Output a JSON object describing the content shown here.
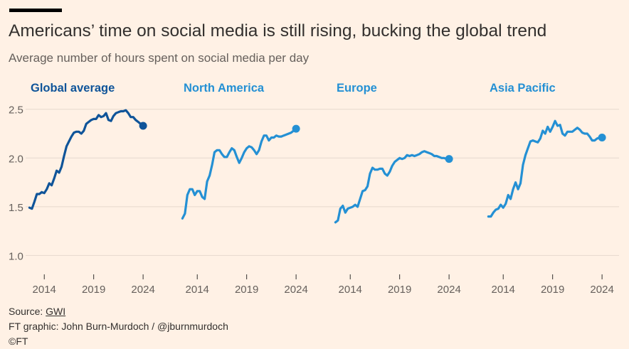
{
  "header": {
    "title": "Americans’ time on social media is still rising, bucking the global trend",
    "subtitle": "Average number of hours spent on social media per day"
  },
  "footer": {
    "source_label": "Source: ",
    "source_link": "GWI",
    "credit": "FT graphic: John Burn-Murdoch / @jburnmurdoch",
    "copyright": "©FT"
  },
  "colors": {
    "background": "#fff1e5",
    "global": "#0f5499",
    "region": "#2490d4",
    "grid": "#e6d9ce",
    "tick_text": "#66605c"
  },
  "chart_data": [
    {
      "type": "line",
      "title": "Global average",
      "color": "#0f5499",
      "ylim": [
        0.85,
        2.6
      ],
      "yticks": [
        1.0,
        1.5,
        2.0,
        2.5
      ],
      "yticklabels": [
        "1.0",
        "1.5",
        "2.0",
        "2.5"
      ],
      "xlim": [
        2012.4,
        2025.0
      ],
      "xticks": [
        2014,
        2019,
        2024
      ],
      "grid": true,
      "series": [
        {
          "x": [
            2012.5,
            2012.75,
            2013.0,
            2013.25,
            2013.5,
            2013.75,
            2014.0,
            2014.25,
            2014.5,
            2014.75,
            2015.0,
            2015.25,
            2015.5,
            2015.75,
            2016.0,
            2016.25,
            2016.5,
            2016.75,
            2017.0,
            2017.25,
            2017.5,
            2017.75,
            2018.0,
            2018.25,
            2018.5,
            2018.75,
            2019.0,
            2019.25,
            2019.5,
            2019.75,
            2020.0,
            2020.25,
            2020.5,
            2020.75,
            2021.0,
            2021.25,
            2021.5,
            2021.75,
            2022.0,
            2022.25,
            2022.5,
            2022.75,
            2023.0,
            2023.25,
            2023.5,
            2023.75,
            2024.0
          ],
          "y": [
            1.49,
            1.48,
            1.55,
            1.63,
            1.63,
            1.65,
            1.64,
            1.68,
            1.74,
            1.72,
            1.79,
            1.87,
            1.85,
            1.91,
            2.02,
            2.12,
            2.17,
            2.22,
            2.26,
            2.27,
            2.27,
            2.25,
            2.28,
            2.35,
            2.37,
            2.39,
            2.4,
            2.4,
            2.44,
            2.42,
            2.43,
            2.46,
            2.39,
            2.38,
            2.43,
            2.46,
            2.47,
            2.48,
            2.48,
            2.49,
            2.46,
            2.42,
            2.42,
            2.39,
            2.37,
            2.35,
            2.33
          ]
        }
      ]
    },
    {
      "type": "line",
      "title": "North America",
      "color": "#2490d4",
      "ylim": [
        0.85,
        2.6
      ],
      "yticks": [
        1.0,
        1.5,
        2.0,
        2.5
      ],
      "xlim": [
        2012.4,
        2025.0
      ],
      "xticks": [
        2014,
        2019,
        2024
      ],
      "grid": true,
      "series": [
        {
          "x": [
            2012.5,
            2012.75,
            2013.0,
            2013.25,
            2013.5,
            2013.75,
            2014.0,
            2014.25,
            2014.5,
            2014.75,
            2015.0,
            2015.25,
            2015.5,
            2015.75,
            2016.0,
            2016.25,
            2016.5,
            2016.75,
            2017.0,
            2017.25,
            2017.5,
            2017.75,
            2018.0,
            2018.25,
            2018.5,
            2018.75,
            2019.0,
            2019.25,
            2019.5,
            2019.75,
            2020.0,
            2020.25,
            2020.5,
            2020.75,
            2021.0,
            2021.25,
            2021.5,
            2021.75,
            2022.0,
            2022.25,
            2022.5,
            2022.75,
            2023.0,
            2023.25,
            2023.5,
            2023.75,
            2024.0
          ],
          "y": [
            1.38,
            1.43,
            1.62,
            1.68,
            1.68,
            1.62,
            1.66,
            1.66,
            1.6,
            1.58,
            1.76,
            1.82,
            1.93,
            2.06,
            2.08,
            2.08,
            2.04,
            2.01,
            2.01,
            2.06,
            2.1,
            2.08,
            2.01,
            1.95,
            2.0,
            2.06,
            2.1,
            2.12,
            2.11,
            2.08,
            2.04,
            2.08,
            2.17,
            2.23,
            2.23,
            2.18,
            2.21,
            2.21,
            2.23,
            2.22,
            2.22,
            2.23,
            2.24,
            2.25,
            2.26,
            2.28,
            2.3
          ]
        }
      ]
    },
    {
      "type": "line",
      "title": "Europe",
      "color": "#2490d4",
      "ylim": [
        0.85,
        2.6
      ],
      "yticks": [
        1.0,
        1.5,
        2.0,
        2.5
      ],
      "xlim": [
        2012.4,
        2025.0
      ],
      "xticks": [
        2014,
        2019,
        2024
      ],
      "grid": true,
      "series": [
        {
          "x": [
            2012.5,
            2012.75,
            2013.0,
            2013.25,
            2013.5,
            2013.75,
            2014.0,
            2014.25,
            2014.5,
            2014.75,
            2015.0,
            2015.25,
            2015.5,
            2015.75,
            2016.0,
            2016.25,
            2016.5,
            2016.75,
            2017.0,
            2017.25,
            2017.5,
            2017.75,
            2018.0,
            2018.25,
            2018.5,
            2018.75,
            2019.0,
            2019.25,
            2019.5,
            2019.75,
            2020.0,
            2020.25,
            2020.5,
            2020.75,
            2021.0,
            2021.25,
            2021.5,
            2021.75,
            2022.0,
            2022.25,
            2022.5,
            2022.75,
            2023.0,
            2023.25,
            2023.5,
            2023.75,
            2024.0
          ],
          "y": [
            1.34,
            1.36,
            1.48,
            1.51,
            1.44,
            1.48,
            1.49,
            1.5,
            1.52,
            1.5,
            1.58,
            1.66,
            1.67,
            1.71,
            1.84,
            1.9,
            1.88,
            1.88,
            1.89,
            1.89,
            1.84,
            1.82,
            1.86,
            1.92,
            1.96,
            1.98,
            2.0,
            1.99,
            2.0,
            2.03,
            2.02,
            2.03,
            2.02,
            2.03,
            2.04,
            2.06,
            2.07,
            2.06,
            2.05,
            2.04,
            2.02,
            2.02,
            2.01,
            2.0,
            2.0,
            1.99,
            1.99
          ]
        }
      ]
    },
    {
      "type": "line",
      "title": "Asia Pacific",
      "color": "#2490d4",
      "ylim": [
        0.85,
        2.6
      ],
      "yticks": [
        1.0,
        1.5,
        2.0,
        2.5
      ],
      "xlim": [
        2012.4,
        2025.0
      ],
      "xticks": [
        2014,
        2019,
        2024
      ],
      "grid": true,
      "series": [
        {
          "x": [
            2012.5,
            2012.75,
            2013.0,
            2013.25,
            2013.5,
            2013.75,
            2014.0,
            2014.25,
            2014.5,
            2014.75,
            2015.0,
            2015.25,
            2015.5,
            2015.75,
            2016.0,
            2016.25,
            2016.5,
            2016.75,
            2017.0,
            2017.25,
            2017.5,
            2017.75,
            2018.0,
            2018.25,
            2018.5,
            2018.75,
            2019.0,
            2019.25,
            2019.5,
            2019.75,
            2020.0,
            2020.25,
            2020.5,
            2020.75,
            2021.0,
            2021.25,
            2021.5,
            2021.75,
            2022.0,
            2022.25,
            2022.5,
            2022.75,
            2023.0,
            2023.25,
            2023.5,
            2023.75,
            2024.0
          ],
          "y": [
            1.4,
            1.4,
            1.44,
            1.47,
            1.48,
            1.52,
            1.49,
            1.53,
            1.62,
            1.58,
            1.68,
            1.75,
            1.68,
            1.74,
            1.93,
            2.03,
            2.1,
            2.17,
            2.18,
            2.17,
            2.16,
            2.2,
            2.28,
            2.25,
            2.32,
            2.27,
            2.32,
            2.38,
            2.33,
            2.34,
            2.25,
            2.23,
            2.27,
            2.27,
            2.27,
            2.29,
            2.31,
            2.29,
            2.26,
            2.25,
            2.25,
            2.22,
            2.18,
            2.18,
            2.2,
            2.21,
            2.21
          ]
        }
      ]
    }
  ]
}
